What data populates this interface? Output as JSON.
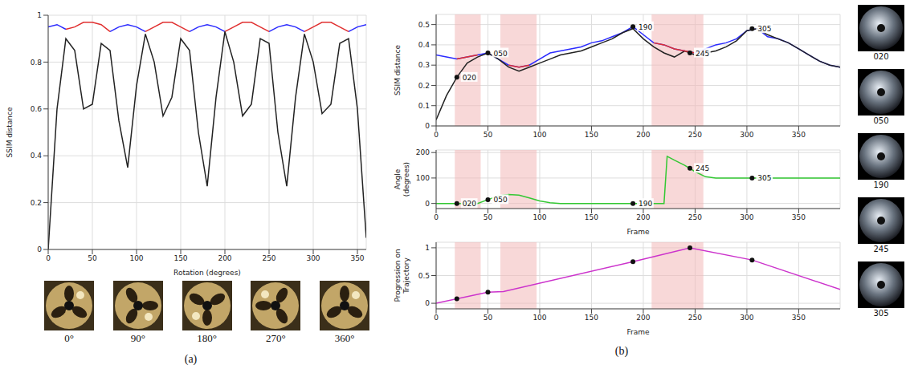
{
  "chart_data": [
    {
      "type": "line",
      "x_label": "Rotation (degrees)",
      "y_label": "SSIM distance",
      "x": [
        0,
        10,
        20,
        30,
        40,
        50,
        60,
        70,
        80,
        90,
        100,
        110,
        120,
        130,
        140,
        150,
        160,
        170,
        180,
        190,
        200,
        210,
        220,
        230,
        240,
        250,
        260,
        270,
        280,
        290,
        300,
        310,
        320,
        330,
        340,
        350,
        360
      ],
      "series": [
        {
          "color": "#2a2aff",
          "values": [
            0.95,
            0.96,
            0.94,
            null,
            null,
            null,
            null,
            0.93,
            0.95,
            0.96,
            0.95,
            0.93,
            null,
            null,
            null,
            null,
            0.93,
            0.95,
            0.96,
            0.95,
            0.93,
            null,
            null,
            null,
            null,
            0.93,
            0.95,
            0.96,
            0.95,
            0.93,
            null,
            null,
            null,
            null,
            0.93,
            0.95,
            0.96
          ]
        },
        {
          "color": "#e03030",
          "values": [
            null,
            null,
            0.94,
            0.95,
            0.97,
            0.97,
            0.96,
            0.93,
            null,
            null,
            null,
            0.93,
            0.95,
            0.97,
            0.97,
            0.95,
            0.93,
            null,
            null,
            null,
            0.93,
            0.95,
            0.97,
            0.97,
            0.95,
            0.93,
            null,
            null,
            null,
            0.93,
            0.95,
            0.97,
            0.97,
            0.95,
            0.93,
            null,
            null
          ]
        },
        {
          "color": "#222222",
          "values": [
            0,
            0.6,
            0.9,
            0.85,
            0.6,
            0.62,
            0.88,
            0.85,
            0.55,
            0.35,
            0.7,
            0.92,
            0.8,
            0.57,
            0.65,
            0.9,
            0.85,
            0.5,
            0.27,
            0.65,
            0.93,
            0.8,
            0.57,
            0.62,
            0.9,
            0.88,
            0.5,
            0.27,
            0.65,
            0.92,
            0.8,
            0.58,
            0.62,
            0.88,
            0.9,
            0.6,
            0.05
          ]
        }
      ],
      "xlim": [
        0,
        360
      ],
      "xticks": [
        0,
        50,
        100,
        150,
        200,
        250,
        300,
        350
      ],
      "ylim": [
        0,
        1
      ],
      "yticks": [
        0,
        0.2,
        0.4,
        0.6,
        0.8,
        1
      ],
      "grid": true
    },
    {
      "type": "line",
      "y_label": "SSIM distance",
      "x": [
        0,
        10,
        20,
        30,
        40,
        50,
        60,
        70,
        80,
        90,
        100,
        110,
        120,
        130,
        140,
        150,
        160,
        170,
        180,
        190,
        200,
        210,
        220,
        230,
        240,
        250,
        260,
        270,
        280,
        290,
        300,
        310,
        320,
        330,
        340,
        350,
        360,
        370,
        380,
        390
      ],
      "series": [
        {
          "color": "#2a2aff",
          "values": [
            0.35,
            0.34,
            0.33,
            0.34,
            0.35,
            0.36,
            0.33,
            0.3,
            0.29,
            0.3,
            0.33,
            0.36,
            0.37,
            0.38,
            0.39,
            0.41,
            0.42,
            0.44,
            0.46,
            0.49,
            0.45,
            0.41,
            0.4,
            0.38,
            0.37,
            0.36,
            0.38,
            0.4,
            0.41,
            0.43,
            0.47,
            0.48,
            0.44,
            0.43,
            0.41,
            0.38,
            0.35,
            0.32,
            0.3,
            0.29
          ]
        },
        {
          "color": "#222222",
          "values": [
            0.03,
            0.15,
            0.24,
            0.31,
            0.34,
            0.36,
            0.33,
            0.29,
            0.27,
            0.29,
            0.31,
            0.33,
            0.35,
            0.36,
            0.37,
            0.39,
            0.41,
            0.43,
            0.46,
            0.48,
            0.43,
            0.39,
            0.36,
            0.34,
            0.37,
            0.35,
            0.36,
            0.37,
            0.39,
            0.42,
            0.47,
            0.48,
            0.45,
            0.43,
            0.41,
            0.38,
            0.35,
            0.32,
            0.3,
            0.29
          ]
        },
        {
          "color": "#e03030",
          "values": [
            null,
            null,
            0.33,
            0.34,
            0.35,
            null,
            null,
            0.3,
            0.29,
            0.3,
            null,
            null,
            null,
            null,
            null,
            null,
            null,
            null,
            null,
            null,
            null,
            0.41,
            0.4,
            0.38,
            0.37,
            0.36,
            null,
            null,
            null,
            null,
            null,
            null,
            null,
            null,
            null,
            null,
            null,
            null,
            null,
            null
          ]
        }
      ],
      "shaded_regions": [
        [
          18,
          43
        ],
        [
          62,
          97
        ],
        [
          208,
          258
        ]
      ],
      "annotations": [
        {
          "x": 20,
          "y": 0.24,
          "text": "020"
        },
        {
          "x": 50,
          "y": 0.36,
          "text": "050"
        },
        {
          "x": 190,
          "y": 0.49,
          "text": "190"
        },
        {
          "x": 245,
          "y": 0.36,
          "text": "245"
        },
        {
          "x": 305,
          "y": 0.48,
          "text": "305"
        }
      ],
      "xlim": [
        0,
        390
      ],
      "xticks": [
        0,
        50,
        100,
        150,
        200,
        250,
        300,
        350
      ],
      "ylim": [
        0,
        0.55
      ],
      "yticks": [
        0,
        0.1,
        0.2,
        0.3,
        0.4,
        0.5
      ],
      "grid": true
    },
    {
      "type": "line",
      "x_label": "Frame",
      "y_label": "Angle (degrees)",
      "x": [
        0,
        10,
        20,
        30,
        40,
        50,
        60,
        70,
        80,
        90,
        100,
        110,
        120,
        130,
        140,
        150,
        160,
        170,
        180,
        190,
        200,
        210,
        220,
        223,
        230,
        240,
        250,
        260,
        270,
        280,
        290,
        300,
        310,
        320,
        330,
        340,
        350,
        360,
        370,
        380,
        390
      ],
      "series": [
        {
          "color": "#33c833",
          "values": [
            0,
            0,
            0,
            0,
            0,
            15,
            30,
            35,
            33,
            22,
            10,
            3,
            0,
            0,
            0,
            0,
            0,
            0,
            0,
            0,
            0,
            0,
            0,
            185,
            170,
            150,
            125,
            105,
            100,
            100,
            100,
            100,
            100,
            100,
            100,
            100,
            100,
            100,
            100,
            100,
            100
          ]
        }
      ],
      "shaded_regions": [
        [
          18,
          43
        ],
        [
          62,
          97
        ],
        [
          208,
          258
        ]
      ],
      "annotations": [
        {
          "x": 20,
          "y": 0,
          "text": "020"
        },
        {
          "x": 50,
          "y": 15,
          "text": "050"
        },
        {
          "x": 190,
          "y": 0,
          "text": "190"
        },
        {
          "x": 245,
          "y": 138,
          "text": "245"
        },
        {
          "x": 305,
          "y": 100,
          "text": "305"
        }
      ],
      "xlim": [
        0,
        390
      ],
      "xticks": [
        0,
        50,
        100,
        150,
        200,
        250,
        300,
        350
      ],
      "ylim": [
        -20,
        210
      ],
      "yticks": [
        0,
        100,
        200
      ],
      "grid": true
    },
    {
      "type": "line",
      "x_label": "Frame",
      "y_label": "Progression on Trajectory",
      "x": [
        0,
        50,
        65,
        190,
        245,
        305,
        390
      ],
      "series": [
        {
          "color": "#cc33cc",
          "values": [
            0,
            0.2,
            0.21,
            0.75,
            1,
            0.78,
            0.25
          ]
        }
      ],
      "shaded_regions": [
        [
          18,
          43
        ],
        [
          62,
          97
        ],
        [
          208,
          258
        ]
      ],
      "annotations": [
        {
          "x": 20,
          "y": 0.08
        },
        {
          "x": 50,
          "y": 0.2
        },
        {
          "x": 190,
          "y": 0.75
        },
        {
          "x": 245,
          "y": 1
        },
        {
          "x": 305,
          "y": 0.78
        }
      ],
      "xlim": [
        0,
        390
      ],
      "xticks": [
        0,
        50,
        100,
        150,
        200,
        250,
        300,
        350
      ],
      "ylim": [
        -0.1,
        1.1
      ],
      "yticks": [
        0,
        0.5,
        1
      ],
      "grid": true
    }
  ],
  "panel_labels": [
    "(a)",
    "(b)"
  ],
  "thumbnail_labels": {
    "a": [
      "0°",
      "90°",
      "180°",
      "270°",
      "360°"
    ],
    "b": [
      "020",
      "050",
      "190",
      "245",
      "305"
    ]
  }
}
